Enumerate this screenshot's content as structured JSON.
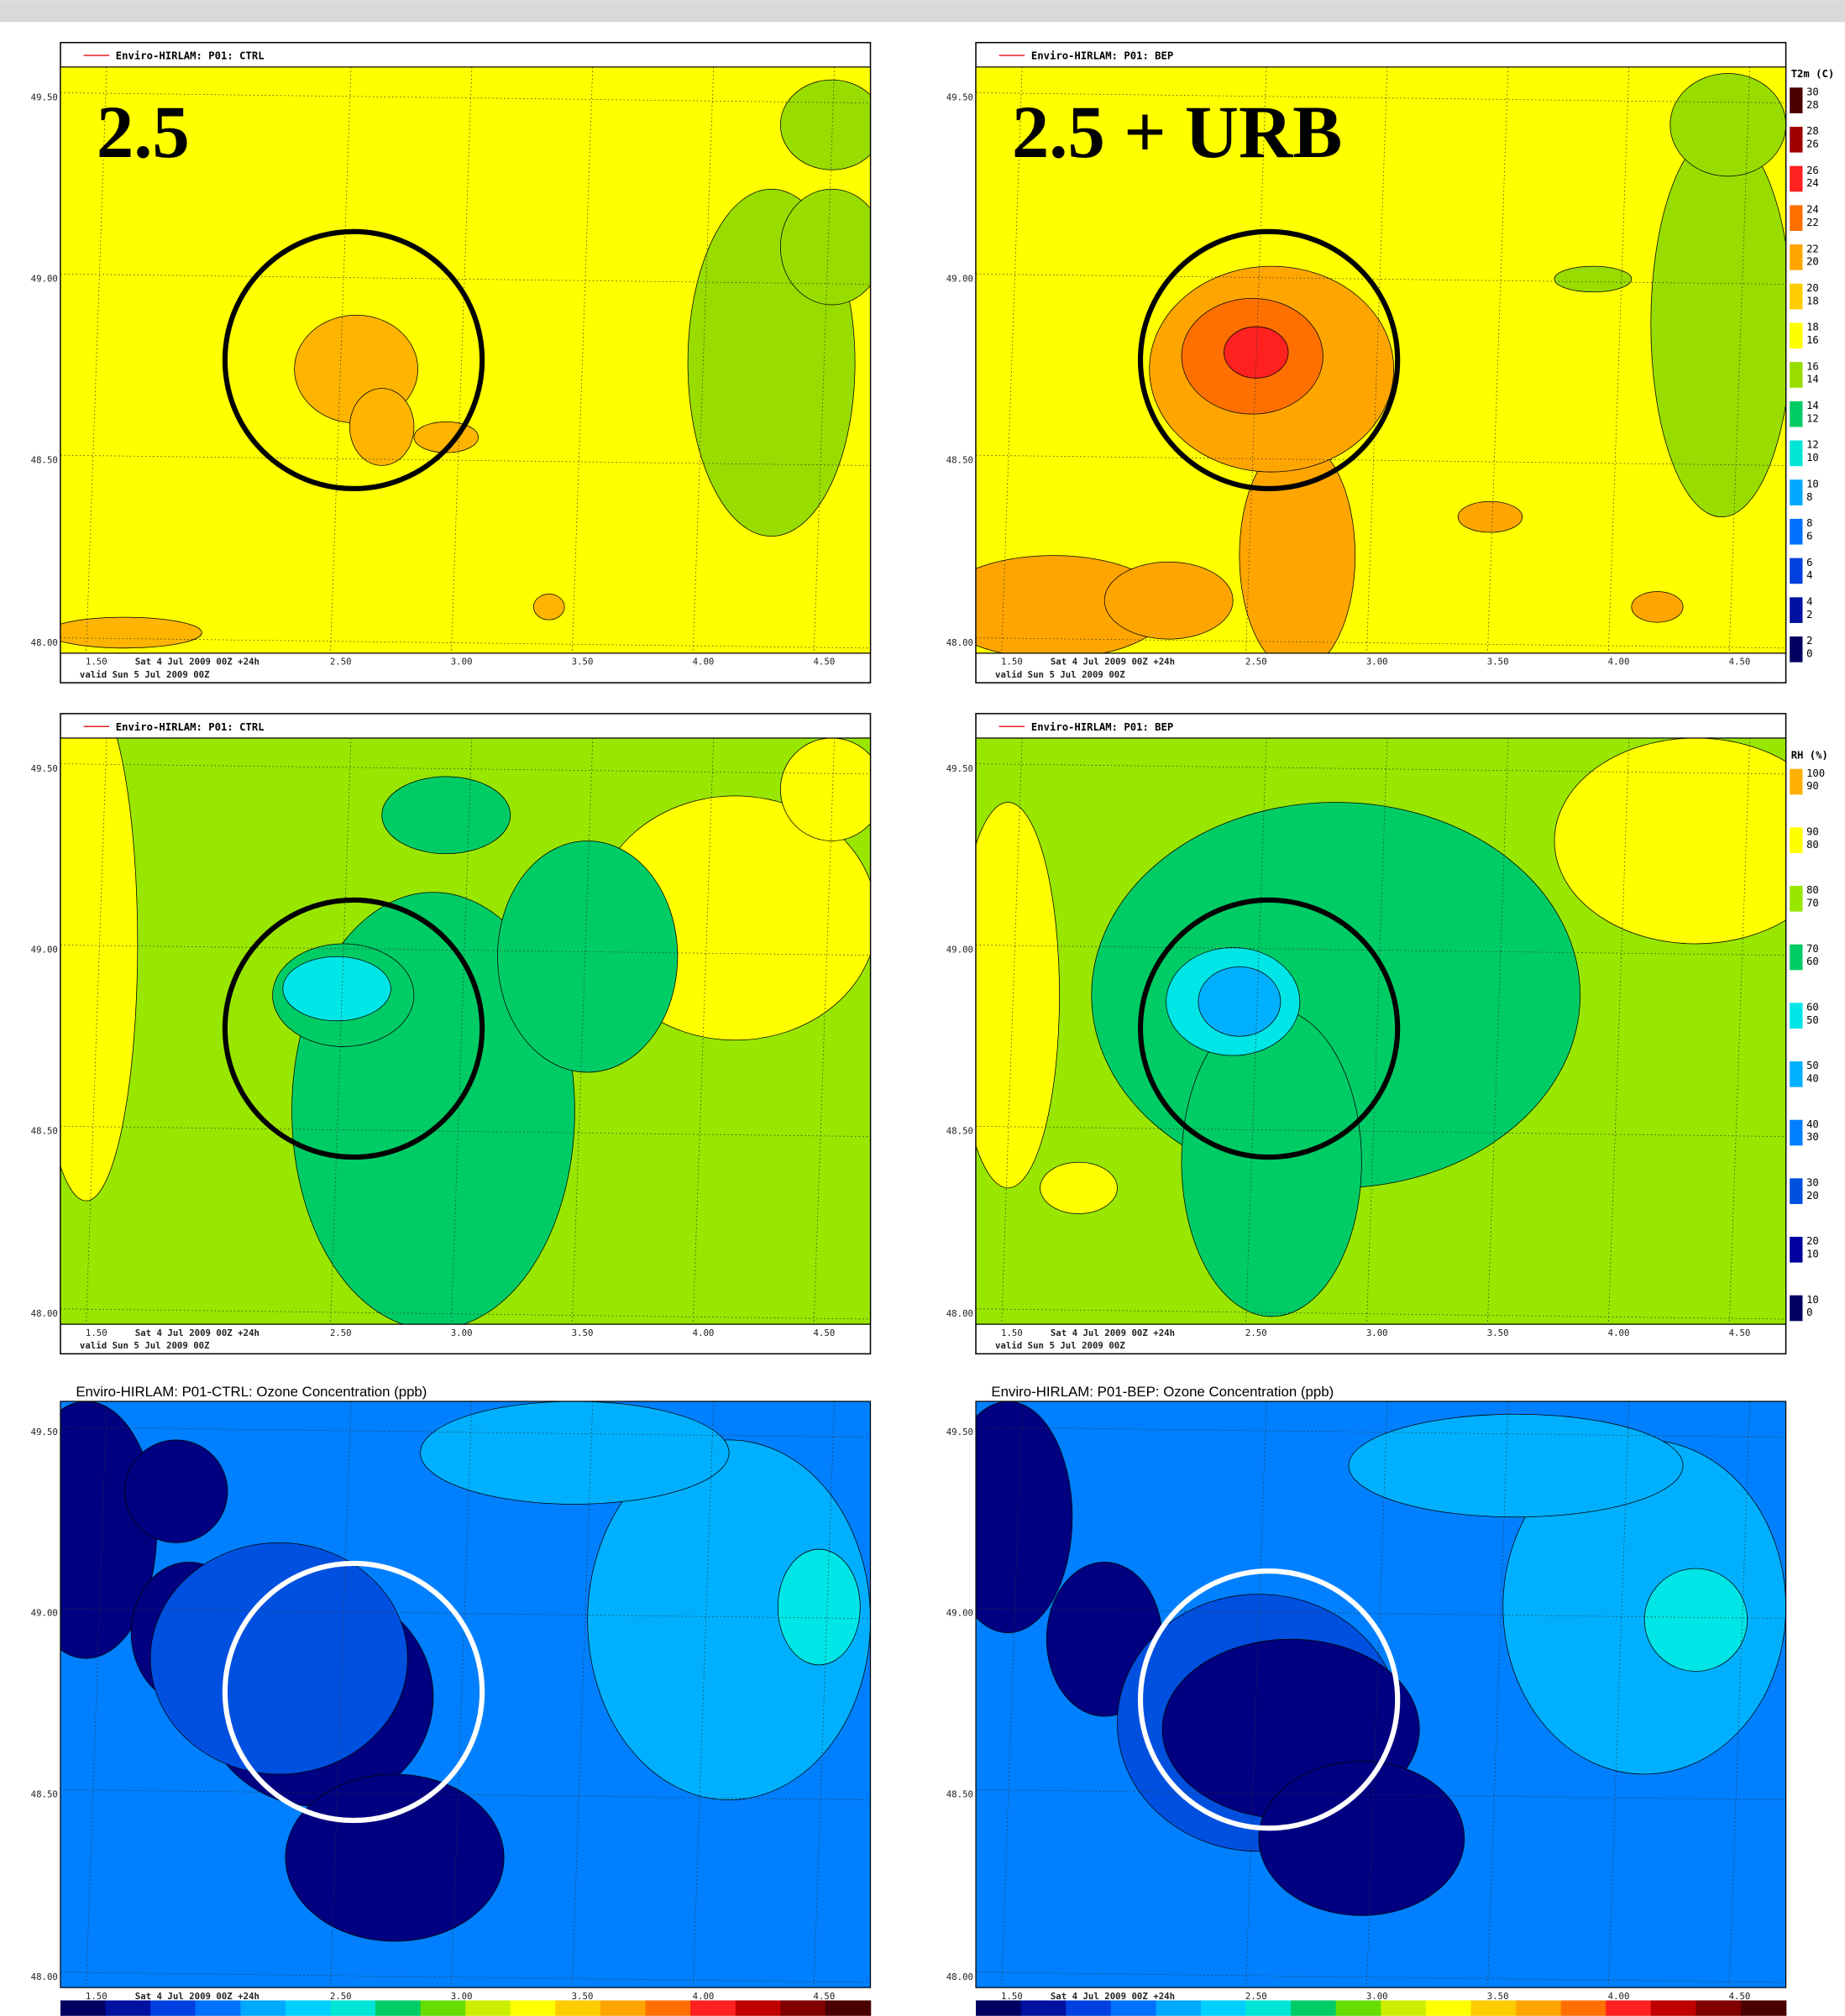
{
  "panels": [
    {
      "title": "Enviro-HIRLAM: P01: CTRL",
      "label": "2.5"
    },
    {
      "title": "Enviro-HIRLAM: P01: BEP",
      "label": "2.5 + URB"
    },
    {
      "title": "Enviro-HIRLAM: P01: CTRL"
    },
    {
      "title": "Enviro-HIRLAM: P01: BEP"
    },
    {
      "title": "Enviro-HIRLAM: P01-CTRL: Ozone Concentration (ppb)"
    },
    {
      "title": "Enviro-HIRLAM: P01-BEP: Ozone Concentration (ppb)"
    }
  ],
  "lat_ticks": [
    "49.50",
    "49.00",
    "48.50",
    "48.00"
  ],
  "lon_ticks": [
    "1.50",
    "2.50",
    "3.00",
    "3.50",
    "4.00",
    "4.50"
  ],
  "run_time": "Sat  4 Jul 2009 00Z +24h",
  "valid_time": "valid  Sun  5 Jul 2009 00Z",
  "legends": {
    "t2m": {
      "title": "T2m (C)",
      "bins": [
        {
          "high": "30",
          "low": "28",
          "color": "#4a0000"
        },
        {
          "high": "28",
          "low": "26",
          "color": "#a00000"
        },
        {
          "high": "26",
          "low": "24",
          "color": "#ff2020"
        },
        {
          "high": "24",
          "low": "22",
          "color": "#ff7000"
        },
        {
          "high": "22",
          "low": "20",
          "color": "#ffa500"
        },
        {
          "high": "20",
          "low": "18",
          "color": "#ffcc00"
        },
        {
          "high": "18",
          "low": "16",
          "color": "#ffff00"
        },
        {
          "high": "16",
          "low": "14",
          "color": "#99dd00"
        },
        {
          "high": "14",
          "low": "12",
          "color": "#00cc66"
        },
        {
          "high": "12",
          "low": "10",
          "color": "#00e5d5"
        },
        {
          "high": "10",
          "low": "8",
          "color": "#00a8ff"
        },
        {
          "high": "8",
          "low": "6",
          "color": "#0070ff"
        },
        {
          "high": "6",
          "low": "4",
          "color": "#0040e0"
        },
        {
          "high": "4",
          "low": "2",
          "color": "#0010a0"
        },
        {
          "high": "2",
          "low": "0",
          "color": "#000060"
        }
      ]
    },
    "rh": {
      "title": "RH (%)",
      "bins": [
        {
          "high": "100",
          "low": "90",
          "color": "#ffb000"
        },
        {
          "high": "90",
          "low": "80",
          "color": "#ffff00"
        },
        {
          "high": "80",
          "low": "70",
          "color": "#99e600"
        },
        {
          "high": "70",
          "low": "60",
          "color": "#00cc66"
        },
        {
          "high": "60",
          "low": "50",
          "color": "#00e5e5"
        },
        {
          "high": "50",
          "low": "40",
          "color": "#00b0ff"
        },
        {
          "high": "40",
          "low": "30",
          "color": "#0080ff"
        },
        {
          "high": "30",
          "low": "20",
          "color": "#0050e0"
        },
        {
          "high": "20",
          "low": "10",
          "color": "#0000a0"
        },
        {
          "high": "10",
          "low": "0",
          "color": "#000060"
        }
      ]
    }
  }
}
